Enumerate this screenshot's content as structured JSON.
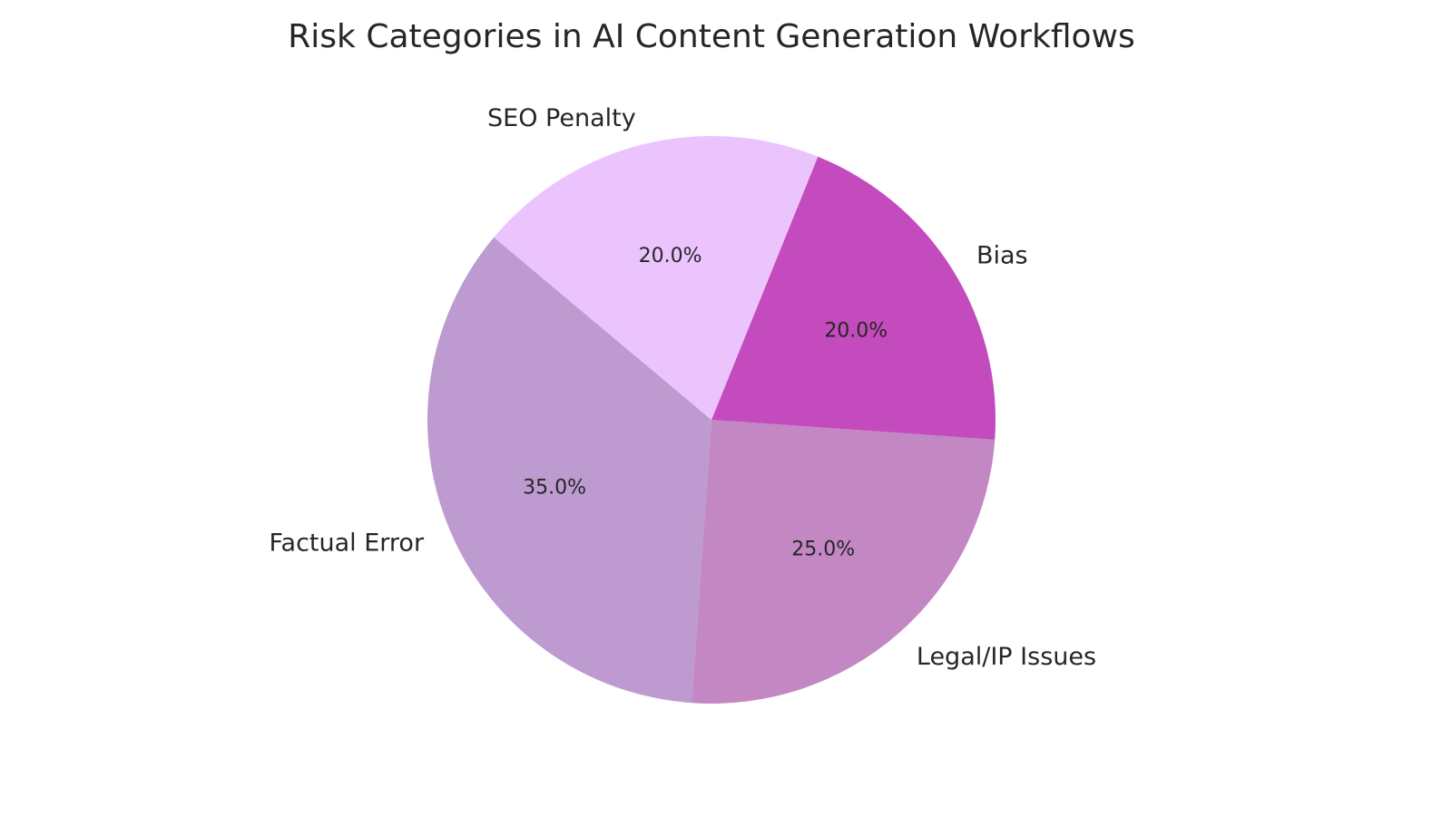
{
  "chart_data": {
    "type": "pie",
    "title": "Risk Categories in AI Content Generation Workflows",
    "categories": [
      "Factual Error",
      "Legal/IP Issues",
      "Bias",
      "SEO Penalty"
    ],
    "values": [
      35,
      25,
      20,
      20
    ],
    "percent_labels": [
      "35.0%",
      "25.0%",
      "20.0%",
      "20.0%"
    ],
    "colors": [
      "#bd9bd0",
      "#c387c3",
      "#c44bbd",
      "#ebc4fd"
    ],
    "start_angle": 140,
    "legend": "none"
  },
  "title": "Risk Categories in AI Content Generation Workflows"
}
